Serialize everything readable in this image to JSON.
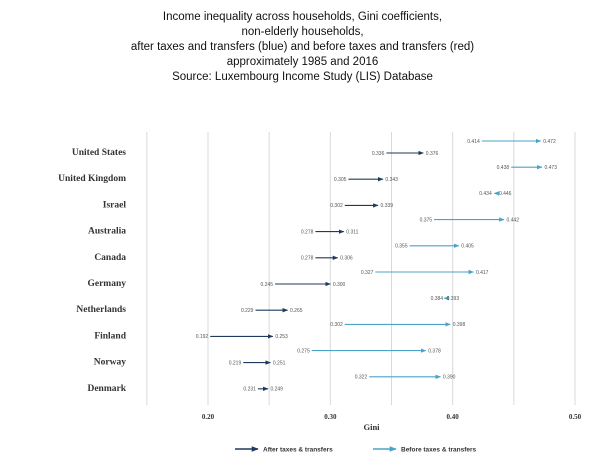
{
  "title_lines": [
    "Income inequality across households, Gini coefficients,",
    "non-elderly households,",
    "after taxes and transfers (blue) and before taxes and transfers (red)",
    "approximately 1985 and 2016",
    "Source:  Luxembourg Income Study (LIS) Database"
  ],
  "colors": {
    "after": "#1f3a5c",
    "before": "#4ba3c9",
    "grid": "#d9d9d9"
  },
  "chart_data": {
    "type": "arrow-dot",
    "xlabel": "Gini",
    "xlim": [
      0.15,
      0.5
    ],
    "xticks": [
      "0.20",
      "0.30",
      "0.40",
      "0.50"
    ],
    "xtick_values": [
      0.2,
      0.3,
      0.4,
      0.5
    ],
    "grid": true,
    "legend": [
      "After taxes & transfers",
      "Before taxes & transfers"
    ],
    "legend_position": "bottom",
    "rows": [
      {
        "country": "United States",
        "before": {
          "from": "0.414",
          "to": "0.472"
        },
        "after": {
          "from": "0.336",
          "to": "0.376"
        }
      },
      {
        "country": "United Kingdom",
        "before": {
          "from": "0.438",
          "to": "0.473"
        },
        "after": {
          "from": "0.305",
          "to": "0.343"
        }
      },
      {
        "country": "Israel",
        "before": {
          "from": "0.446",
          "to": "0.434"
        },
        "after": {
          "from": "0.302",
          "to": "0.339"
        }
      },
      {
        "country": "Australia",
        "before": {
          "from": "0.375",
          "to": "0.442"
        },
        "after": {
          "from": "0.278",
          "to": "0.311"
        }
      },
      {
        "country": "Canada",
        "before": {
          "from": "0.355",
          "to": "0.405"
        },
        "after": {
          "from": "0.278",
          "to": "0.306"
        }
      },
      {
        "country": "Germany",
        "before": {
          "from": "0.327",
          "to": "0.417"
        },
        "after": {
          "from": "0.245",
          "to": "0.300"
        }
      },
      {
        "country": "Netherlands",
        "before": {
          "from": "0.384",
          "to": "0.393"
        },
        "after": {
          "from": "0.229",
          "to": "0.265"
        }
      },
      {
        "country": "Finland",
        "before": {
          "from": "0.302",
          "to": "0.398"
        },
        "after": {
          "from": "0.192",
          "to": "0.253"
        }
      },
      {
        "country": "Norway",
        "before": {
          "from": "0.275",
          "to": "0.378"
        },
        "after": {
          "from": "0.219",
          "to": "0.251"
        }
      },
      {
        "country": "Denmark",
        "before": {
          "from": "0.322",
          "to": "0.390"
        },
        "after": {
          "from": "0.231",
          "to": "0.249"
        }
      }
    ]
  }
}
